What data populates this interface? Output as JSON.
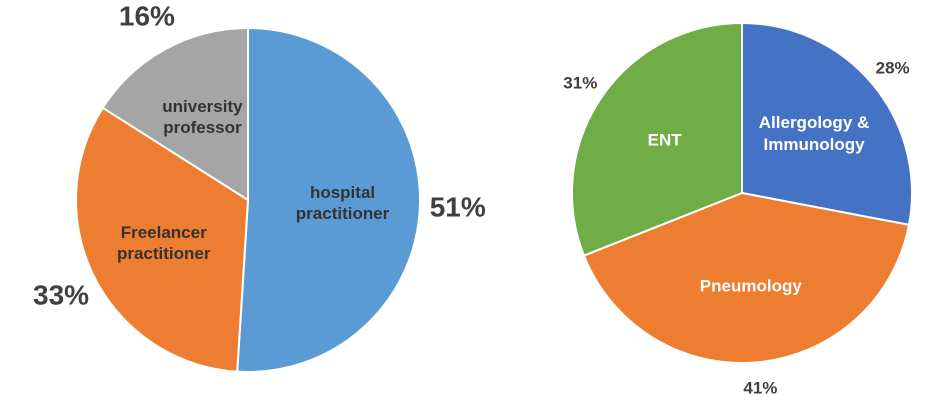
{
  "chart_data": [
    {
      "type": "pie",
      "categories": [
        "hospital practitioner",
        "Freelancer practitioner",
        "university professor"
      ],
      "values": [
        51,
        33,
        16
      ],
      "value_labels": [
        "51%",
        "33%",
        "16%"
      ],
      "colors": [
        "#5b9bd5",
        "#ed7d31",
        "#a5a5a5"
      ]
    },
    {
      "type": "pie",
      "categories": [
        "Allergology & Immunology",
        "Pneumology",
        "ENT"
      ],
      "values": [
        28,
        41,
        31
      ],
      "value_labels": [
        "28%",
        "41%",
        "31%"
      ],
      "colors": [
        "#4472c4",
        "#ed7d31",
        "#70ad47"
      ]
    }
  ]
}
